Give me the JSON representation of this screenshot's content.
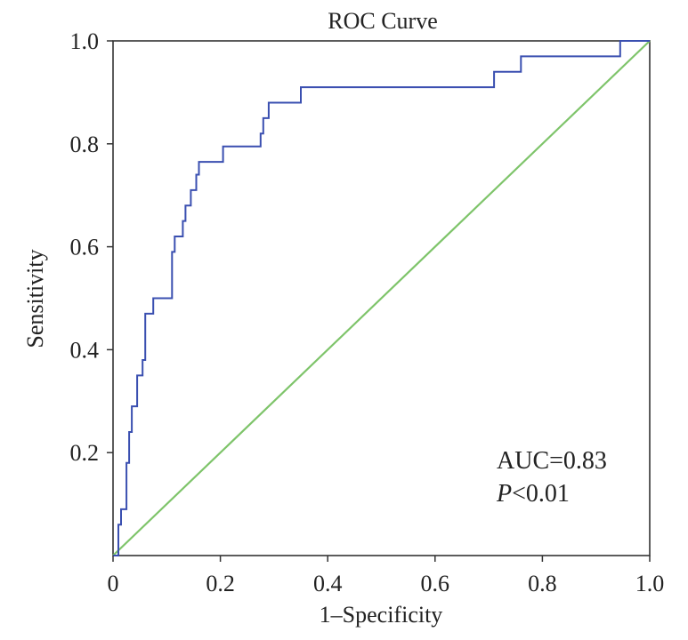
{
  "chart_data": {
    "type": "line",
    "title": "ROC Curve",
    "xlabel": "1–Specificity",
    "ylabel": "Sensitivity",
    "xlim": [
      0,
      1
    ],
    "ylim": [
      0,
      1
    ],
    "x_ticks": [
      "0",
      "0.2",
      "0.4",
      "0.6",
      "0.8",
      "1.0"
    ],
    "y_ticks": [
      "0.2",
      "0.4",
      "0.6",
      "0.8",
      "1.0"
    ],
    "grid": false,
    "series": [
      {
        "color": "#3a4fb0",
        "style": "step",
        "x": [
          0,
          0.01,
          0.01,
          0.015,
          0.015,
          0.025,
          0.025,
          0.03,
          0.03,
          0.035,
          0.035,
          0.045,
          0.045,
          0.055,
          0.055,
          0.06,
          0.06,
          0.075,
          0.075,
          0.11,
          0.11,
          0.115,
          0.115,
          0.13,
          0.13,
          0.135,
          0.135,
          0.145,
          0.145,
          0.155,
          0.155,
          0.16,
          0.16,
          0.205,
          0.205,
          0.275,
          0.275,
          0.28,
          0.28,
          0.29,
          0.29,
          0.35,
          0.35,
          0.71,
          0.71,
          0.76,
          0.76,
          0.945,
          0.945,
          1.0
        ],
        "y": [
          0,
          0,
          0.06,
          0.06,
          0.09,
          0.09,
          0.18,
          0.18,
          0.24,
          0.24,
          0.29,
          0.29,
          0.35,
          0.35,
          0.38,
          0.38,
          0.47,
          0.47,
          0.5,
          0.5,
          0.59,
          0.59,
          0.62,
          0.62,
          0.65,
          0.65,
          0.68,
          0.68,
          0.71,
          0.71,
          0.74,
          0.74,
          0.765,
          0.765,
          0.795,
          0.795,
          0.82,
          0.82,
          0.85,
          0.85,
          0.88,
          0.88,
          0.91,
          0.91,
          0.94,
          0.94,
          0.97,
          0.97,
          1.0,
          1.0
        ]
      },
      {
        "color": "#7ec46a",
        "style": "line",
        "x": [
          0,
          1
        ],
        "y": [
          0,
          1
        ]
      }
    ],
    "annotations": {
      "auc": "AUC=0.83",
      "p_letter": "P",
      "p_rest": "<0.01"
    }
  }
}
